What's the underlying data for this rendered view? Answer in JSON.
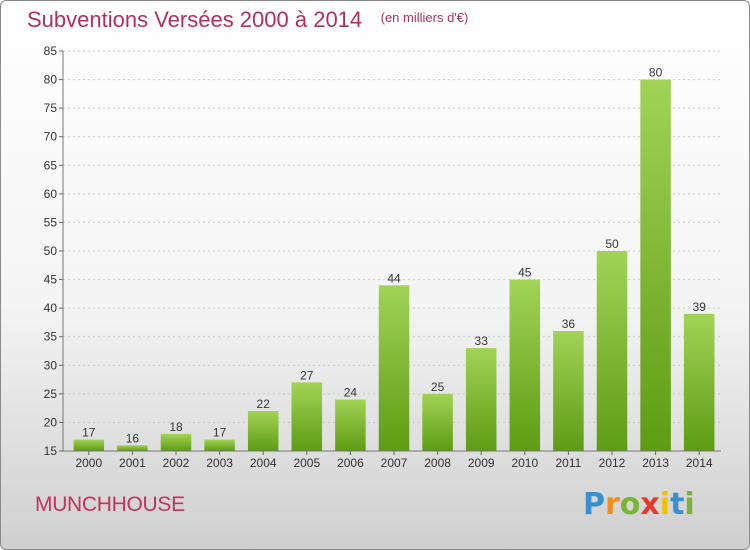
{
  "title": "Subventions Versées 2000 à 2014",
  "unit_note": "(en milliers d'€)",
  "commune": "MUNCHHOUSE",
  "brand": {
    "letters": [
      "P",
      "r",
      "o",
      "x",
      "i",
      "t",
      "i"
    ],
    "colors": [
      "#3a8fd0",
      "#f28c1e",
      "#79b433",
      "#e43a2a",
      "#f2c200",
      "#3a8fd0",
      "#79b433"
    ]
  },
  "colors": {
    "bar_top": "#a2d356",
    "bar_bottom": "#5e9c14",
    "title": "#b0305a",
    "grid": "#c8c8c8"
  },
  "chart_data": {
    "type": "bar",
    "title": "Subventions Versées 2000 à 2014",
    "xlabel": "",
    "ylabel": "",
    "categories": [
      "2000",
      "2001",
      "2002",
      "2003",
      "2004",
      "2005",
      "2006",
      "2007",
      "2008",
      "2009",
      "2010",
      "2011",
      "2012",
      "2013",
      "2014"
    ],
    "values": [
      17,
      16,
      18,
      17,
      22,
      27,
      24,
      44,
      25,
      33,
      45,
      36,
      50,
      80,
      39
    ],
    "ylim": [
      15,
      85
    ],
    "yticks": [
      15,
      20,
      25,
      30,
      35,
      40,
      45,
      50,
      55,
      60,
      65,
      70,
      75,
      80,
      85
    ],
    "grid": true,
    "data_labels": true
  }
}
